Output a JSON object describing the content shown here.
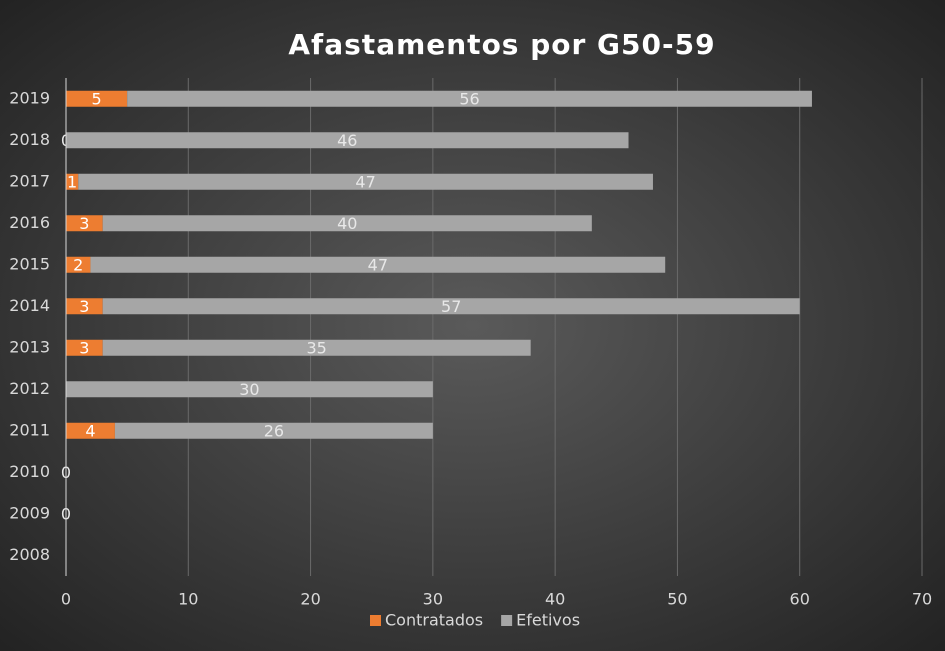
{
  "chart_data": {
    "type": "stacked-bar-horizontal",
    "title": "Afastamentos por G50-59",
    "categories": [
      "2019",
      "2018",
      "2017",
      "2016",
      "2015",
      "2014",
      "2013",
      "2012",
      "2011",
      "2010",
      "2009",
      "2008"
    ],
    "series": [
      {
        "name": "Contratados",
        "color": "#ed7d31",
        "values": [
          5,
          0,
          1,
          3,
          2,
          3,
          3,
          null,
          4,
          0,
          0,
          null
        ]
      },
      {
        "name": "Efetivos",
        "color": "#a6a6a6",
        "values": [
          56,
          46,
          47,
          40,
          47,
          57,
          35,
          30,
          26,
          null,
          null,
          null
        ]
      }
    ],
    "xlim": [
      0,
      70
    ],
    "xticks": [
      0,
      10,
      20,
      30,
      40,
      50,
      60,
      70
    ],
    "grid": true,
    "legend": "bottom"
  }
}
